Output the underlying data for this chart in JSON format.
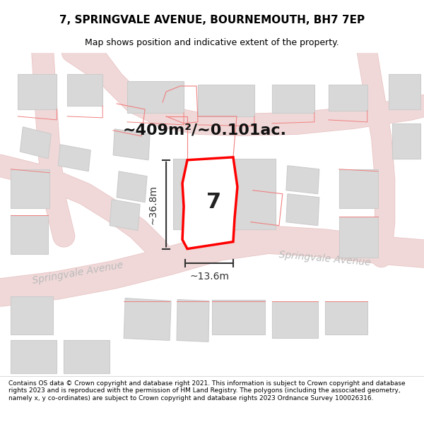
{
  "title_line1": "7, SPRINGVALE AVENUE, BOURNEMOUTH, BH7 7EP",
  "title_line2": "Map shows position and indicative extent of the property.",
  "area_text": "~409m²/~0.101ac.",
  "property_number": "7",
  "dim_width": "~13.6m",
  "dim_height": "~36.8m",
  "street_label": "Springvale Avenue",
  "footer_text": "Contains OS data © Crown copyright and database right 2021. This information is subject to Crown copyright and database rights 2023 and is reproduced with the permission of HM Land Registry. The polygons (including the associated geometry, namely x, y co-ordinates) are subject to Crown copyright and database rights 2023 Ordnance Survey 100026316.",
  "bg_color": "#f5f5f5",
  "map_bg": "#f0f0f0",
  "road_color": "#e8d8d8",
  "road_fill": "#e8d8d8",
  "building_color": "#d8d8d8",
  "building_edge": "#cccccc",
  "plot_color": "#ff0000",
  "plot_fill": "none",
  "dim_color": "#333333",
  "text_color": "#333333",
  "road_label_color": "#aaaaaa"
}
